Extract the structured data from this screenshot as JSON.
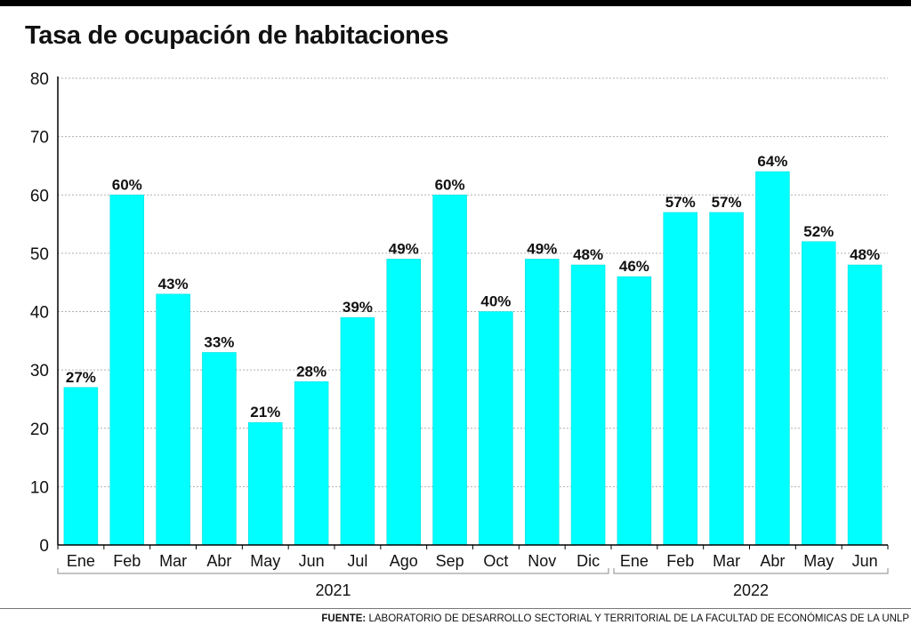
{
  "title": "Tasa de ocupación de habitaciones",
  "source": {
    "label": "FUENTE:",
    "text": "LABORATORIO DE DESARROLLO SECTORIAL Y TERRITORIAL DE LA FACULTAD DE ECONÓMICAS DE LA UNLP"
  },
  "colors": {
    "bar": "#00ffff",
    "bar_edge": "#00d8d8",
    "text": "#111111",
    "grid": "#b0b0b0"
  },
  "chart_data": {
    "type": "bar",
    "categories": [
      "Ene",
      "Feb",
      "Mar",
      "Abr",
      "May",
      "Jun",
      "Jul",
      "Ago",
      "Sep",
      "Oct",
      "Nov",
      "Dic",
      "Ene",
      "Feb",
      "Mar",
      "Abr",
      "May",
      "Jun"
    ],
    "values": [
      27,
      60,
      43,
      33,
      21,
      28,
      39,
      49,
      60,
      40,
      49,
      48,
      46,
      57,
      57,
      64,
      52,
      48
    ],
    "value_labels": [
      "27%",
      "60%",
      "43%",
      "33%",
      "21%",
      "28%",
      "39%",
      "49%",
      "60%",
      "40%",
      "49%",
      "48%",
      "46%",
      "57%",
      "57%",
      "64%",
      "52%",
      "48%"
    ],
    "groups": [
      {
        "label": "2021",
        "count": 12
      },
      {
        "label": "2022",
        "count": 6
      }
    ],
    "y_ticks": [
      "0",
      "10",
      "20",
      "30",
      "40",
      "50",
      "60",
      "70",
      "80"
    ],
    "ylim": [
      0,
      80
    ],
    "grid": true
  }
}
